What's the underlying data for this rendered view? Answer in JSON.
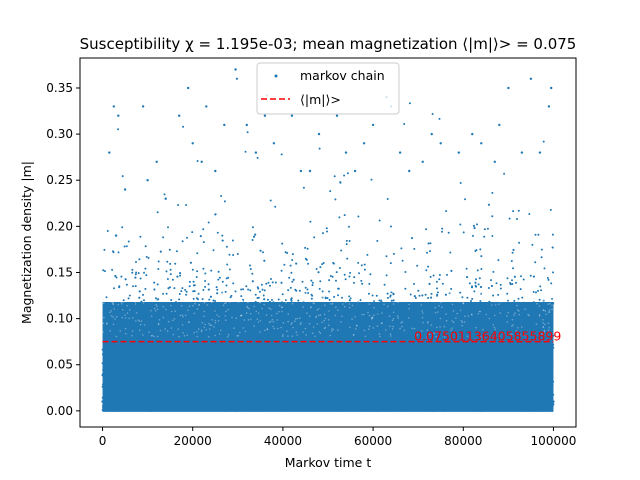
{
  "chart_data": {
    "type": "scatter",
    "title": "Susceptibility χ = 1.195e-03; mean magnetization ⟨|m|⟩> = 0.075",
    "xlabel": "Markov time t",
    "ylabel": "Magnetization density |m|",
    "xlim": [
      -5000,
      105000
    ],
    "ylim": [
      -0.0175,
      0.3825
    ],
    "x_ticks": [
      0,
      20000,
      40000,
      60000,
      80000,
      100000
    ],
    "x_tick_labels": [
      "0",
      "20000",
      "40000",
      "60000",
      "80000",
      "100000"
    ],
    "y_ticks": [
      0.0,
      0.05,
      0.1,
      0.15,
      0.2,
      0.25,
      0.3,
      0.35
    ],
    "y_tick_labels": [
      "0.00",
      "0.05",
      "0.10",
      "0.15",
      "0.20",
      "0.25",
      "0.30",
      "0.35"
    ],
    "grid": false,
    "legend_position": "top-center",
    "series": [
      {
        "name": "markov chain",
        "kind": "points",
        "color": "#1f77b4",
        "x_range": [
          0,
          100000
        ],
        "approx_y_range": [
          0.0,
          0.37
        ],
        "points": [
          [
            0,
            0.01
          ],
          [
            1500,
            0.28
          ],
          [
            2500,
            0.33
          ],
          [
            3000,
            0.19
          ],
          [
            3500,
            0.32
          ],
          [
            5000,
            0.24
          ],
          [
            9000,
            0.33
          ],
          [
            10000,
            0.25
          ],
          [
            12000,
            0.27
          ],
          [
            14000,
            0.23
          ],
          [
            17000,
            0.32
          ],
          [
            19000,
            0.35
          ],
          [
            20000,
            0.29
          ],
          [
            22000,
            0.27
          ],
          [
            23000,
            0.33
          ],
          [
            25000,
            0.26
          ],
          [
            27000,
            0.31
          ],
          [
            29500,
            0.37
          ],
          [
            32000,
            0.31
          ],
          [
            34000,
            0.28
          ],
          [
            36000,
            0.32
          ],
          [
            38000,
            0.29
          ],
          [
            42000,
            0.32
          ],
          [
            44000,
            0.26
          ],
          [
            46000,
            0.26
          ],
          [
            48000,
            0.3
          ],
          [
            52000,
            0.32
          ],
          [
            54000,
            0.28
          ],
          [
            56000,
            0.26
          ],
          [
            58000,
            0.29
          ],
          [
            60000,
            0.31
          ],
          [
            63000,
            0.34
          ],
          [
            64000,
            0.33
          ],
          [
            66000,
            0.28
          ],
          [
            68000,
            0.26
          ],
          [
            71000,
            0.27
          ],
          [
            73000,
            0.3
          ],
          [
            75000,
            0.29
          ],
          [
            79000,
            0.28
          ],
          [
            82000,
            0.3
          ],
          [
            84000,
            0.29
          ],
          [
            87000,
            0.27
          ],
          [
            88000,
            0.31
          ],
          [
            90000,
            0.35
          ],
          [
            93000,
            0.28
          ],
          [
            95000,
            0.36
          ],
          [
            97000,
            0.28
          ],
          [
            99000,
            0.33
          ],
          [
            99500,
            0.35
          ],
          [
            100000,
            0.01
          ]
        ]
      },
      {
        "name": "⟨|m|⟩>",
        "kind": "hline",
        "color": "#ff0000",
        "y": 0.07501136405855899,
        "x_range": [
          0,
          100000
        ]
      }
    ],
    "annotations": [
      {
        "text": "0.07501136405855899",
        "x": 70000,
        "y": 0.07501136405855899,
        "color": "#ff0000"
      }
    ]
  }
}
